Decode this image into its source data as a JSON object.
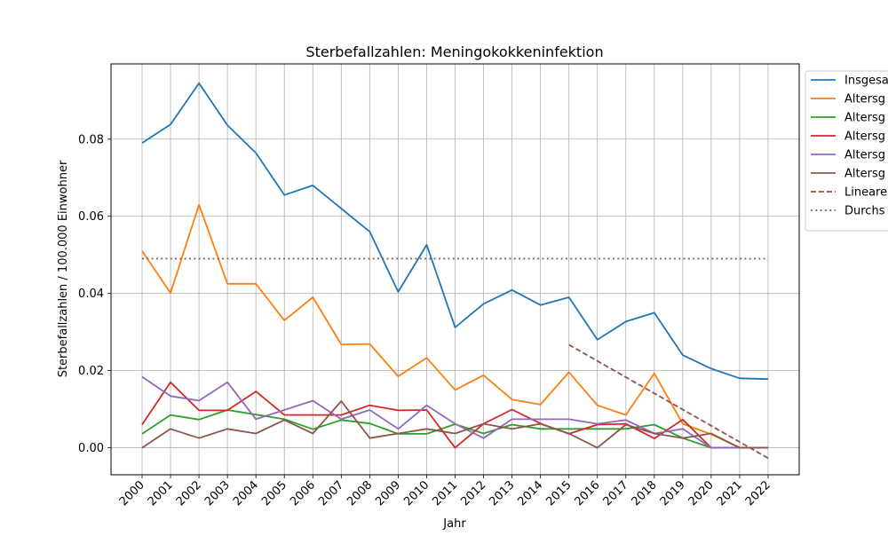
{
  "chart_data": {
    "type": "line",
    "title": "Sterbefallzahlen: Meningokokkeninfektion",
    "xlabel": "Jahr",
    "ylabel": "Sterbefallzahlen / 100.000 Einwohner",
    "categories": [
      "2000",
      "2001",
      "2002",
      "2003",
      "2004",
      "2005",
      "2006",
      "2007",
      "2008",
      "2009",
      "2010",
      "2011",
      "2012",
      "2013",
      "2014",
      "2015",
      "2016",
      "2017",
      "2018",
      "2019",
      "2020",
      "2021",
      "2022"
    ],
    "ylim": [
      -0.007,
      0.0995
    ],
    "yticks": [
      "0.00",
      "0.02",
      "0.04",
      "0.06",
      "0.08"
    ],
    "ytick_values": [
      0,
      0.02,
      0.04,
      0.06,
      0.08
    ],
    "grid": true,
    "legend_position": "upper right, outside plot (clipped)",
    "series": [
      {
        "name": "Insgesa",
        "color": "#1f77b4",
        "style": "solid",
        "values": [
          0.079,
          0.0838,
          0.0945,
          0.0836,
          0.0764,
          0.0655,
          0.068,
          0.062,
          0.056,
          0.0404,
          0.0526,
          0.0312,
          0.0373,
          0.0409,
          0.037,
          0.039,
          0.028,
          0.0327,
          0.035,
          0.024,
          0.0205,
          0.018,
          0.0178
        ]
      },
      {
        "name": "Altersg",
        "color": "#ff7f0e",
        "style": "solid",
        "values": [
          0.051,
          0.0401,
          0.063,
          0.0425,
          0.0425,
          0.033,
          0.039,
          0.0268,
          0.0269,
          0.0185,
          0.0233,
          0.015,
          0.0188,
          0.0125,
          0.0112,
          0.0196,
          0.011,
          0.0085,
          0.0193,
          0.0062,
          0.0035,
          0.0,
          0.0
        ]
      },
      {
        "name": "Altersg",
        "color": "#2ca02c",
        "style": "solid",
        "values": [
          0.0036,
          0.0085,
          0.0073,
          0.0098,
          0.0086,
          0.0074,
          0.0048,
          0.0072,
          0.0063,
          0.0036,
          0.0036,
          0.0061,
          0.0037,
          0.006,
          0.0049,
          0.0049,
          0.0049,
          0.0049,
          0.006,
          0.0025,
          0.0,
          0.0,
          0.0
        ]
      },
      {
        "name": "Altersg",
        "color": "#d62728",
        "style": "solid",
        "values": [
          0.006,
          0.017,
          0.0097,
          0.0097,
          0.0146,
          0.0085,
          0.0085,
          0.0085,
          0.011,
          0.0097,
          0.0098,
          0.0,
          0.0062,
          0.0099,
          0.0063,
          0.0036,
          0.006,
          0.0062,
          0.0024,
          0.0073,
          0.0,
          0.0,
          0.0
        ]
      },
      {
        "name": "Altersg",
        "color": "#9467bd",
        "style": "solid",
        "values": [
          0.0184,
          0.0134,
          0.0122,
          0.017,
          0.0074,
          0.0098,
          0.0122,
          0.0074,
          0.0098,
          0.0049,
          0.011,
          0.0062,
          0.0025,
          0.0074,
          0.0074,
          0.0074,
          0.0062,
          0.0072,
          0.0037,
          0.0049,
          0.0,
          0.0,
          0.0
        ]
      },
      {
        "name": "Altersg",
        "color": "#8c564b",
        "style": "solid",
        "values": [
          0.0,
          0.0049,
          0.0025,
          0.0049,
          0.0037,
          0.0072,
          0.0037,
          0.0121,
          0.0025,
          0.0037,
          0.0049,
          0.0037,
          0.0062,
          0.0049,
          0.0062,
          0.0037,
          0.0,
          0.006,
          0.0037,
          0.0025,
          0.0037,
          0.0,
          0.0
        ]
      },
      {
        "name": "Lineare",
        "color": "#8c564b",
        "style": "dashed",
        "x": [
          "2015",
          "2022"
        ],
        "values": [
          0.0267,
          -0.0027
        ]
      },
      {
        "name": "Durchs",
        "color": "#8c564b",
        "style": "dotted",
        "x": [
          "2000",
          "2022"
        ],
        "values": [
          0.049,
          0.049
        ]
      }
    ]
  }
}
